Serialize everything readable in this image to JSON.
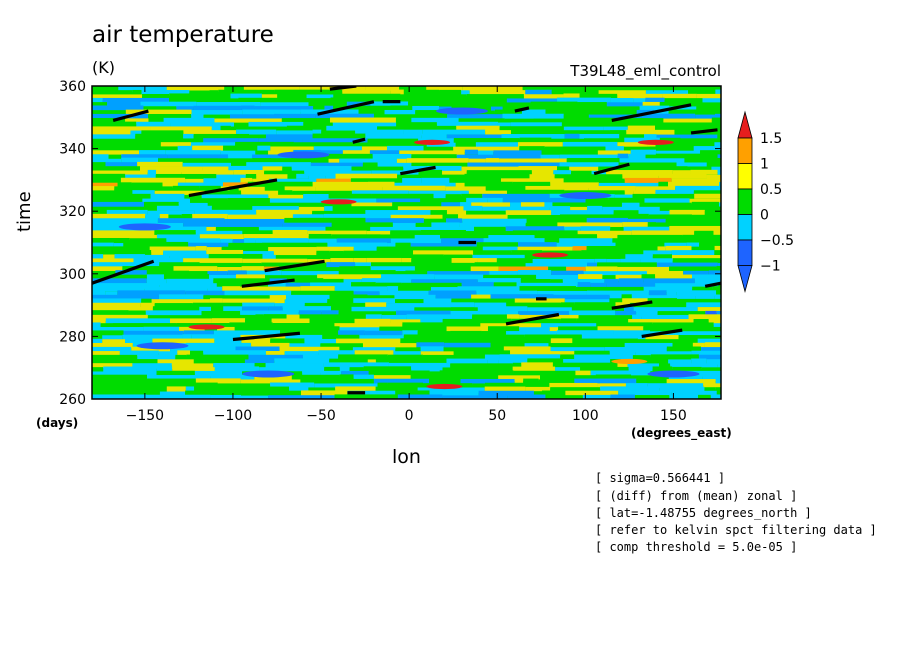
{
  "title": "air temperature",
  "units": "(K)",
  "run_label": "T39L48_eml_control",
  "notes": [
    "[ sigma=0.566441 ]",
    "[ (diff) from (mean) zonal ]",
    "[ lat=-1.48755 degrees_north ]",
    "[ refer to kelvin spct filtering data ]",
    "[ comp threshold = 5.0e-05 ]"
  ],
  "chart_data": {
    "type": "heatmap",
    "xlabel": "lon",
    "ylabel": "time",
    "x_unit": "(degrees_east)",
    "y_unit": "(days)",
    "xlim": [
      -180,
      177
    ],
    "ylim": [
      260,
      360
    ],
    "xticks": [
      -150,
      -100,
      -50,
      0,
      50,
      100,
      150
    ],
    "yticks": [
      260,
      280,
      300,
      320,
      340,
      360
    ],
    "colorbar": {
      "levels": [
        -1,
        -0.5,
        0,
        0.5,
        1,
        1.5
      ],
      "labels": [
        "−1",
        "−0.5",
        "0",
        "0.5",
        "1",
        "1.5"
      ],
      "colors": [
        "#1e64ff",
        "#00d2ff",
        "#00dc00",
        "#ffff00",
        "#ffa000",
        "#e61e1e",
        "#1e64ff",
        "#e61e1e"
      ]
    },
    "field_colors": {
      "below_-1": "#1e64ff",
      "-1_to_-0.5": "#00a0ff",
      "-0.5_to_0": "#00d2ff",
      "0_to_0.5": "#00dc00",
      "0.5_to_1": "#e6e600",
      "1_to_1.5": "#ffa000",
      "above_1.5": "#e61e1e"
    },
    "features": {
      "hot_spots": [
        {
          "lon": 13,
          "time": 342,
          "value": 1.6
        },
        {
          "lon": 140,
          "time": 342,
          "value": 1.6
        },
        {
          "lon": 80,
          "time": 306,
          "value": 1.6
        },
        {
          "lon": 20,
          "time": 264,
          "value": 1.6
        },
        {
          "lon": -115,
          "time": 283,
          "value": 1.6
        },
        {
          "lon": -40,
          "time": 323,
          "value": 1.6
        },
        {
          "lon": 125,
          "time": 272,
          "value": 1.1
        }
      ],
      "cold_spots": [
        {
          "lon": 150,
          "time": 268,
          "value": -1.2
        },
        {
          "lon": -140,
          "time": 277,
          "value": -1.2
        },
        {
          "lon": -150,
          "time": 315,
          "value": -1.2
        },
        {
          "lon": 30,
          "time": 352,
          "value": -1.2
        },
        {
          "lon": -60,
          "time": 338,
          "value": -1.2
        },
        {
          "lon": 100,
          "time": 325,
          "value": -1.2
        },
        {
          "lon": -80,
          "time": 268,
          "value": -1.2
        }
      ],
      "black_segments": [
        [
          [
            -168,
            349
          ],
          [
            -148,
            352
          ]
        ],
        [
          [
            -52,
            351
          ],
          [
            -20,
            355
          ]
        ],
        [
          [
            -15,
            355
          ],
          [
            -5,
            355
          ]
        ],
        [
          [
            115,
            349
          ],
          [
            160,
            354
          ]
        ],
        [
          [
            -125,
            325
          ],
          [
            -75,
            330
          ]
        ],
        [
          [
            -180,
            297
          ],
          [
            -145,
            304
          ]
        ],
        [
          [
            -82,
            301
          ],
          [
            -48,
            304
          ]
        ],
        [
          [
            -95,
            296
          ],
          [
            -65,
            298
          ]
        ],
        [
          [
            -100,
            279
          ],
          [
            -62,
            281
          ]
        ],
        [
          [
            -5,
            332
          ],
          [
            15,
            334
          ]
        ],
        [
          [
            105,
            332
          ],
          [
            125,
            335
          ]
        ],
        [
          [
            55,
            284
          ],
          [
            85,
            287
          ]
        ],
        [
          [
            115,
            289
          ],
          [
            138,
            291
          ]
        ],
        [
          [
            132,
            280
          ],
          [
            155,
            282
          ]
        ],
        [
          [
            168,
            296
          ],
          [
            177,
            297
          ]
        ],
        [
          [
            160,
            345
          ],
          [
            175,
            346
          ]
        ],
        [
          [
            28,
            310
          ],
          [
            38,
            310
          ]
        ],
        [
          [
            -45,
            359
          ],
          [
            -30,
            360
          ]
        ],
        [
          [
            60,
            352
          ],
          [
            68,
            353
          ]
        ],
        [
          [
            -32,
            342
          ],
          [
            -25,
            343
          ]
        ],
        [
          [
            72,
            292
          ],
          [
            78,
            292
          ]
        ],
        [
          [
            -35,
            262
          ],
          [
            -25,
            262
          ]
        ]
      ]
    }
  }
}
